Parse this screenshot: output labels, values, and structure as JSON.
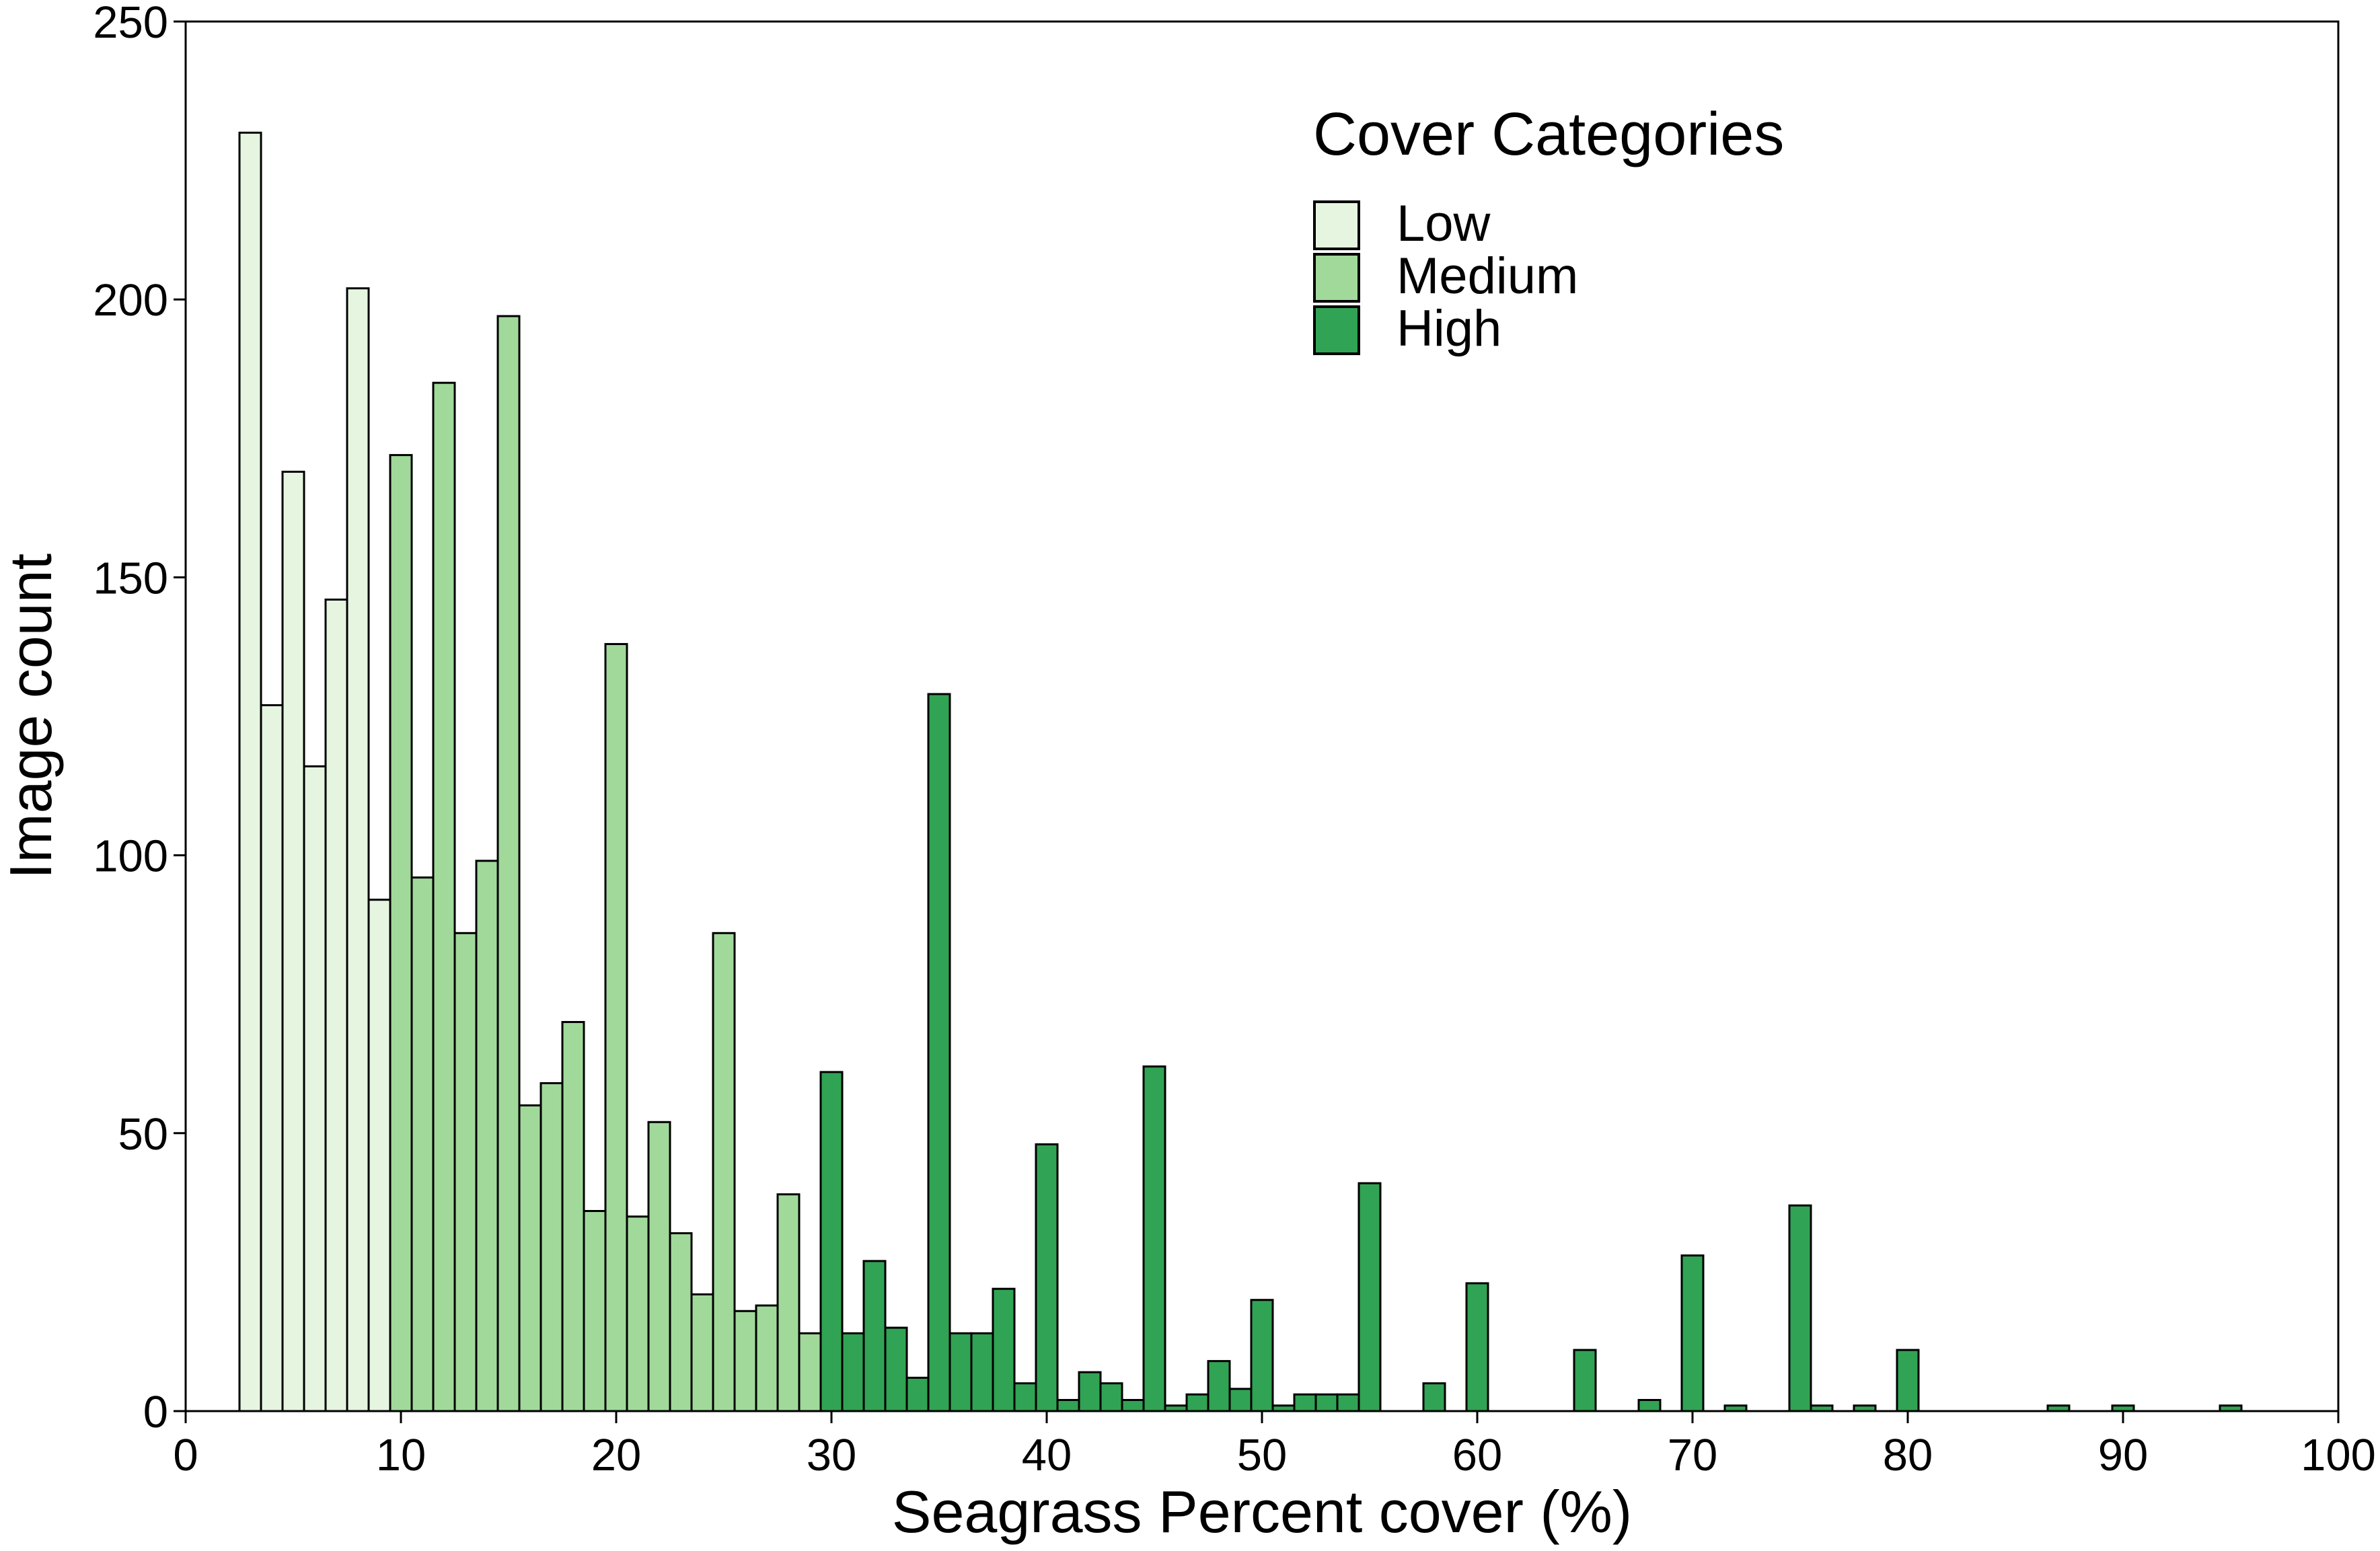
{
  "chart_data": {
    "type": "bar",
    "title": "",
    "xlabel": "Seagrass Percent cover (%)",
    "ylabel": "Image count",
    "xlim": [
      0,
      100
    ],
    "ylim": [
      0,
      250
    ],
    "xticks": [
      0,
      10,
      20,
      30,
      40,
      50,
      60,
      70,
      80,
      90,
      100
    ],
    "yticks": [
      0,
      50,
      100,
      150,
      200,
      250
    ],
    "bin_width": 1,
    "grid": false,
    "legend": {
      "title": "Cover Categories",
      "position": "top-right",
      "entries": [
        "Low",
        "Medium",
        "High"
      ]
    },
    "series": [
      {
        "name": "Low",
        "color": "#e5f5e0",
        "x": [
          3,
          4,
          5,
          6,
          7,
          8,
          9
        ],
        "values": [
          230,
          127,
          169,
          116,
          146,
          202,
          92
        ]
      },
      {
        "name": "Medium",
        "color": "#a1d99b",
        "x": [
          10,
          11,
          12,
          13,
          14,
          15,
          16,
          17,
          18,
          19,
          20,
          21,
          22,
          23,
          24,
          25,
          26,
          27,
          28,
          29
        ],
        "values": [
          172,
          96,
          185,
          86,
          99,
          197,
          55,
          59,
          70,
          36,
          138,
          35,
          52,
          32,
          21,
          86,
          18,
          19,
          39,
          14
        ]
      },
      {
        "name": "High",
        "color": "#31a354",
        "x": [
          30,
          31,
          32,
          33,
          34,
          35,
          36,
          37,
          38,
          39,
          40,
          41,
          42,
          43,
          44,
          45,
          46,
          47,
          48,
          49,
          50,
          51,
          52,
          53,
          54,
          55,
          58,
          60,
          65,
          68,
          70,
          72,
          75,
          76,
          78,
          80,
          87,
          90,
          95
        ],
        "values": [
          61,
          14,
          27,
          15,
          6,
          129,
          14,
          14,
          22,
          5,
          48,
          2,
          7,
          5,
          2,
          62,
          1,
          3,
          9,
          4,
          20,
          1,
          3,
          3,
          3,
          41,
          5,
          23,
          11,
          2,
          28,
          1,
          37,
          1,
          1,
          11,
          1,
          1,
          1
        ]
      }
    ]
  }
}
